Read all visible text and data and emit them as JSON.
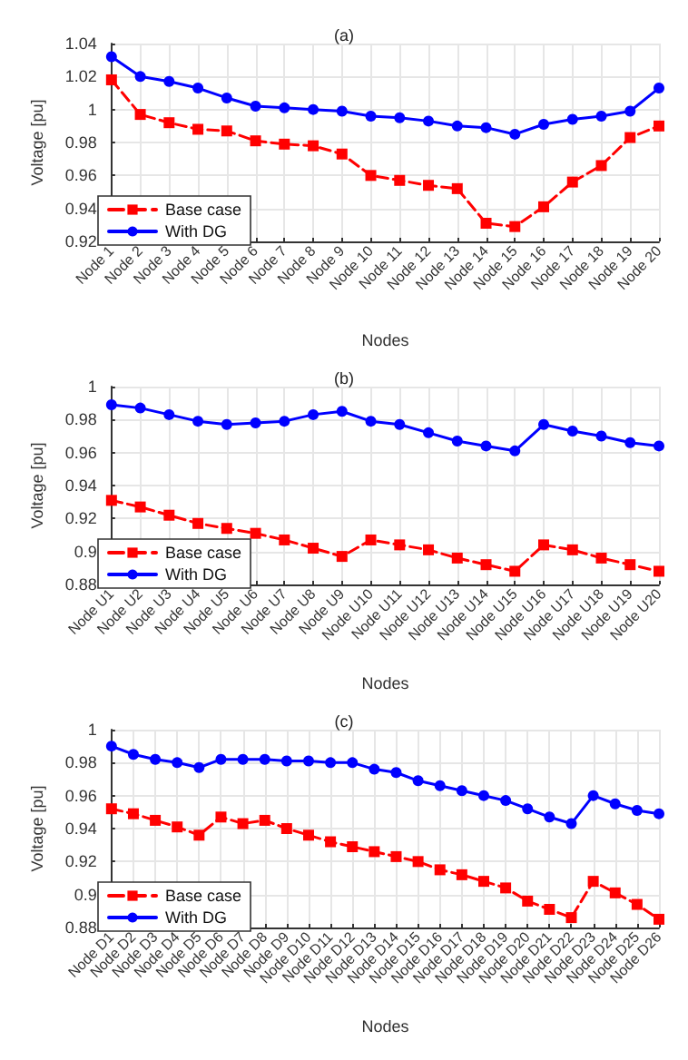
{
  "chart_data": [
    {
      "type": "line",
      "title": "(a)",
      "xlabel": "Nodes",
      "ylabel": "Voltage [pu]",
      "categories": [
        "Node 1",
        "Node 2",
        "Node 3",
        "Node 4",
        "Node 5",
        "Node 6",
        "Node 7",
        "Node 8",
        "Node 9",
        "Node 10",
        "Node 11",
        "Node 12",
        "Node 13",
        "Node 14",
        "Node 15",
        "Node 16",
        "Node 17",
        "Node 18",
        "Node 19",
        "Node 20"
      ],
      "ylim": [
        0.92,
        1.04
      ],
      "yticks": [
        0.92,
        0.94,
        0.96,
        0.98,
        1,
        1.02,
        1.04
      ],
      "grid": true,
      "legend": "bottom left",
      "series": [
        {
          "name": "Base case",
          "color": "#ff0000",
          "marker": "square",
          "line_style": "dashed",
          "values": [
            1.018,
            0.997,
            0.992,
            0.988,
            0.987,
            0.981,
            0.979,
            0.978,
            0.973,
            0.96,
            0.957,
            0.954,
            0.952,
            0.931,
            0.929,
            0.941,
            0.956,
            0.966,
            0.983,
            0.99
          ]
        },
        {
          "name": "With DG",
          "color": "#0000ff",
          "marker": "circle",
          "line_style": "solid",
          "values": [
            1.032,
            1.02,
            1.017,
            1.013,
            1.007,
            1.002,
            1.001,
            1.0,
            0.999,
            0.996,
            0.995,
            0.993,
            0.99,
            0.989,
            0.985,
            0.991,
            0.994,
            0.996,
            0.999,
            1.013
          ]
        }
      ]
    },
    {
      "type": "line",
      "title": "(b)",
      "xlabel": "Nodes",
      "ylabel": "Voltage [pu]",
      "categories": [
        "Node U1",
        "Node U2",
        "Node U3",
        "Node U4",
        "Node U5",
        "Node U6",
        "Node U7",
        "Node U8",
        "Node U9",
        "Node U10",
        "Node U11",
        "Node U12",
        "Node U13",
        "Node U14",
        "Node U15",
        "Node U16",
        "Node U17",
        "Node U18",
        "Node U19",
        "Node U20"
      ],
      "ylim": [
        0.88,
        1
      ],
      "yticks": [
        0.88,
        0.9,
        0.92,
        0.94,
        0.96,
        0.98,
        1
      ],
      "grid": true,
      "legend": "bottom left",
      "series": [
        {
          "name": "Base case",
          "color": "#ff0000",
          "marker": "square",
          "line_style": "dashed",
          "values": [
            0.931,
            0.927,
            0.922,
            0.917,
            0.914,
            0.911,
            0.907,
            0.902,
            0.897,
            0.907,
            0.904,
            0.901,
            0.896,
            0.892,
            0.888,
            0.904,
            0.901,
            0.896,
            0.892,
            0.888
          ]
        },
        {
          "name": "With DG",
          "color": "#0000ff",
          "marker": "circle",
          "line_style": "solid",
          "values": [
            0.989,
            0.987,
            0.983,
            0.979,
            0.977,
            0.978,
            0.979,
            0.983,
            0.985,
            0.979,
            0.977,
            0.972,
            0.967,
            0.964,
            0.961,
            0.977,
            0.973,
            0.97,
            0.966,
            0.964
          ]
        }
      ]
    },
    {
      "type": "line",
      "title": "(c)",
      "xlabel": "Nodes",
      "ylabel": "Voltage [pu]",
      "categories": [
        "Node D1",
        "Node D2",
        "Node D3",
        "Node D4",
        "Node D5",
        "Node D6",
        "Node D7",
        "Node D8",
        "Node D9",
        "Node D10",
        "Node D11",
        "Node D12",
        "Node D13",
        "Node D14",
        "Node D15",
        "Node D16",
        "Node D17",
        "Node D18",
        "Node D19",
        "Node D20",
        "Node D21",
        "Node D22",
        "Node D23",
        "Node D24",
        "Node D25",
        "Node D26"
      ],
      "ylim": [
        0.88,
        1
      ],
      "yticks": [
        0.88,
        0.9,
        0.92,
        0.94,
        0.96,
        0.98,
        1
      ],
      "grid": true,
      "legend": "bottom left",
      "series": [
        {
          "name": "Base case",
          "color": "#ff0000",
          "marker": "square",
          "line_style": "dashed",
          "values": [
            0.952,
            0.949,
            0.945,
            0.941,
            0.936,
            0.947,
            0.943,
            0.945,
            0.94,
            0.936,
            0.932,
            0.929,
            0.926,
            0.923,
            0.92,
            0.915,
            0.912,
            0.908,
            0.904,
            0.896,
            0.891,
            0.886,
            0.908,
            0.901,
            0.894,
            0.885
          ]
        },
        {
          "name": "With DG",
          "color": "#0000ff",
          "marker": "circle",
          "line_style": "solid",
          "values": [
            0.99,
            0.985,
            0.982,
            0.98,
            0.977,
            0.982,
            0.982,
            0.982,
            0.981,
            0.981,
            0.98,
            0.98,
            0.976,
            0.974,
            0.969,
            0.966,
            0.963,
            0.96,
            0.957,
            0.952,
            0.947,
            0.943,
            0.96,
            0.955,
            0.951,
            0.949
          ]
        }
      ]
    }
  ]
}
